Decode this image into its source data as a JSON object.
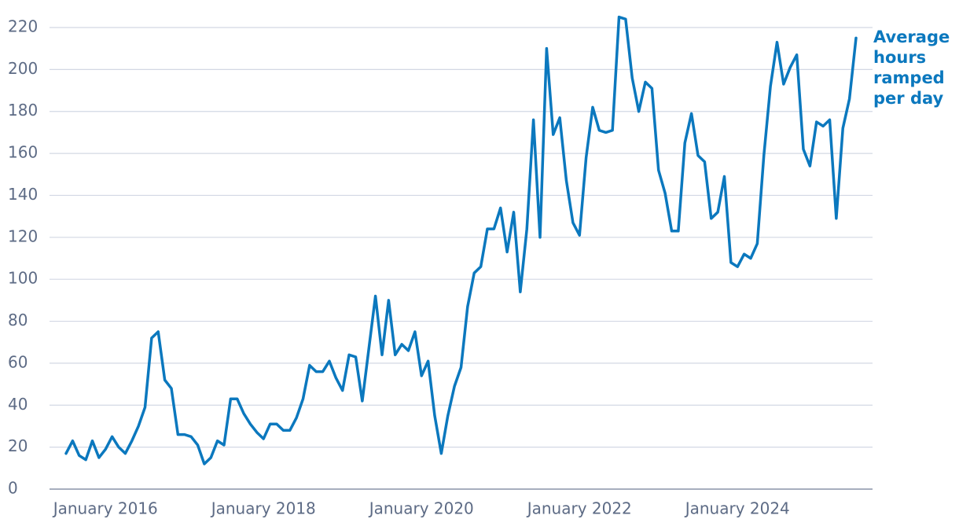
{
  "chart_data": {
    "type": "line",
    "x": [
      "2015-07",
      "2015-08",
      "2015-09",
      "2015-10",
      "2015-11",
      "2015-12",
      "2016-01",
      "2016-02",
      "2016-03",
      "2016-04",
      "2016-05",
      "2016-06",
      "2016-07",
      "2016-08",
      "2016-09",
      "2016-10",
      "2016-11",
      "2016-12",
      "2017-01",
      "2017-02",
      "2017-03",
      "2017-04",
      "2017-05",
      "2017-06",
      "2017-07",
      "2017-08",
      "2017-09",
      "2017-10",
      "2017-11",
      "2017-12",
      "2018-01",
      "2018-02",
      "2018-03",
      "2018-04",
      "2018-05",
      "2018-06",
      "2018-07",
      "2018-08",
      "2018-09",
      "2018-10",
      "2018-11",
      "2018-12",
      "2019-01",
      "2019-02",
      "2019-03",
      "2019-04",
      "2019-05",
      "2019-06",
      "2019-07",
      "2019-08",
      "2019-09",
      "2019-10",
      "2019-11",
      "2019-12",
      "2020-01",
      "2020-02",
      "2020-03",
      "2020-04",
      "2020-05",
      "2020-06",
      "2020-07",
      "2020-08",
      "2020-09",
      "2020-10",
      "2020-11",
      "2020-12",
      "2021-01",
      "2021-02",
      "2021-03",
      "2021-04",
      "2021-05",
      "2021-06",
      "2021-07",
      "2021-08",
      "2021-09",
      "2021-10",
      "2021-11",
      "2021-12",
      "2022-01",
      "2022-02",
      "2022-03",
      "2022-04",
      "2022-05",
      "2022-06",
      "2022-07",
      "2022-08",
      "2022-09",
      "2022-10",
      "2022-11",
      "2022-12",
      "2023-01",
      "2023-02",
      "2023-03",
      "2023-04",
      "2023-05",
      "2023-06",
      "2023-07",
      "2023-08",
      "2023-09",
      "2023-10",
      "2023-11",
      "2023-12",
      "2024-01",
      "2024-02",
      "2024-03",
      "2024-04",
      "2024-05",
      "2024-06",
      "2024-07",
      "2024-08",
      "2024-09",
      "2024-10",
      "2024-11",
      "2024-12",
      "2025-01",
      "2025-02",
      "2025-03",
      "2025-04",
      "2025-05",
      "2025-06",
      "2025-07"
    ],
    "series": [
      {
        "name": "Average hours ramped per day",
        "color": "#0b78be",
        "values": [
          17,
          23,
          16,
          14,
          23,
          15,
          19,
          25,
          20,
          17,
          23,
          30,
          39,
          72,
          75,
          52,
          48,
          26,
          26,
          25,
          21,
          12,
          15,
          23,
          21,
          43,
          43,
          36,
          31,
          27,
          24,
          31,
          31,
          28,
          28,
          34,
          43,
          59,
          56,
          56,
          61,
          53,
          47,
          64,
          63,
          42,
          67,
          92,
          64,
          90,
          64,
          69,
          66,
          75,
          54,
          61,
          35,
          17,
          35,
          49,
          58,
          87,
          103,
          106,
          124,
          124,
          134,
          113,
          132,
          94,
          124,
          176,
          120,
          210,
          169,
          177,
          147,
          127,
          121,
          158,
          182,
          171,
          170,
          171,
          225,
          224,
          196,
          180,
          194,
          191,
          152,
          141,
          123,
          123,
          165,
          179,
          159,
          156,
          129,
          132,
          149,
          108,
          106,
          112,
          110,
          117,
          159,
          192,
          213,
          193,
          201,
          207,
          162,
          154,
          175,
          173,
          176,
          129,
          172,
          186,
          215
        ]
      }
    ],
    "ylim": [
      0,
      220
    ],
    "yticks": [
      0,
      20,
      40,
      60,
      80,
      100,
      120,
      140,
      160,
      180,
      200,
      220
    ],
    "xticks": [
      {
        "value": "2016-01",
        "label": "January 2016"
      },
      {
        "value": "2018-01",
        "label": "January 2018"
      },
      {
        "value": "2020-01",
        "label": "January 2020"
      },
      {
        "value": "2022-01",
        "label": "January 2022"
      },
      {
        "value": "2024-01",
        "label": "January 2024"
      }
    ],
    "grid": true
  }
}
